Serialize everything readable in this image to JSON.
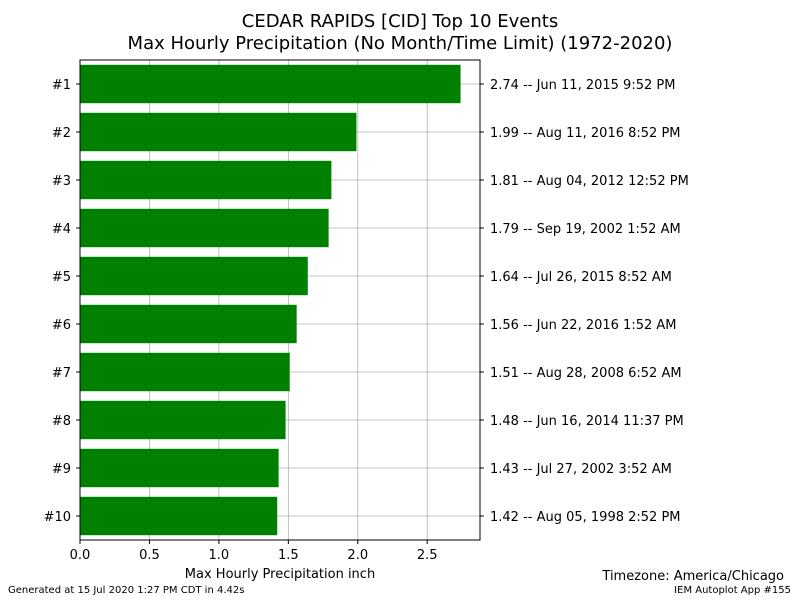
{
  "chart_data": {
    "type": "bar",
    "orientation": "horizontal",
    "title": "CEDAR RAPIDS [CID] Top 10 Events",
    "subtitle": "Max Hourly Precipitation (No Month/Time Limit) (1972-2020)",
    "xlabel": "Max Hourly Precipitation inch",
    "ylabel": "",
    "xlim": [
      0,
      2.88
    ],
    "xticks": [
      "0.0",
      "0.5",
      "1.0",
      "1.5",
      "2.0",
      "2.5"
    ],
    "grid": true,
    "bar_color": "#008000",
    "categories": [
      "#1",
      "#2",
      "#3",
      "#4",
      "#5",
      "#6",
      "#7",
      "#8",
      "#9",
      "#10"
    ],
    "values": [
      2.74,
      1.99,
      1.81,
      1.79,
      1.64,
      1.56,
      1.51,
      1.48,
      1.43,
      1.42
    ],
    "right_labels": [
      "2.74 -- Jun 11, 2015 9:52 PM",
      "1.99 -- Aug 11, 2016 8:52 PM",
      "1.81 -- Aug 04, 2012 12:52 PM",
      "1.79 -- Sep 19, 2002 1:52 AM",
      "1.64 -- Jul 26, 2015 8:52 AM",
      "1.56 -- Jun 22, 2016 1:52 AM",
      "1.51 -- Aug 28, 2008 6:52 AM",
      "1.48 -- Jun 16, 2014 11:37 PM",
      "1.43 -- Jul 27, 2002 3:52 AM",
      "1.42 -- Aug 05, 1998 2:52 PM"
    ]
  },
  "footer": {
    "timezone": "Timezone: America/Chicago",
    "generated": "Generated at 15 Jul 2020 1:27 PM CDT in 4.42s",
    "app": "IEM Autoplot App #155"
  }
}
